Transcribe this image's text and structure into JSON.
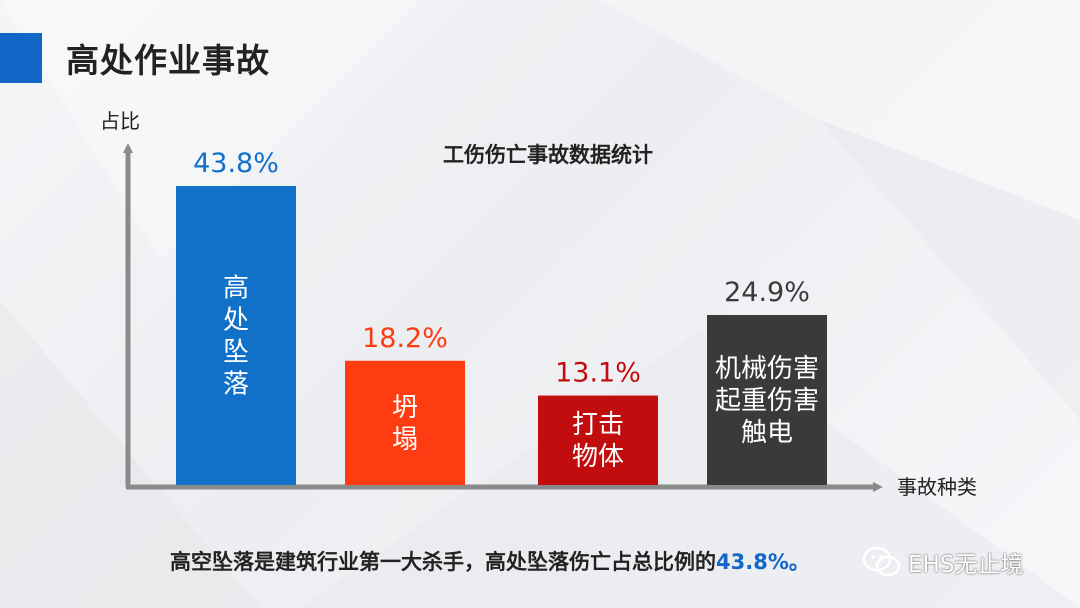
{
  "header": {
    "title": "高处作业事故"
  },
  "chart_data": {
    "type": "bar",
    "title": "工伤伤亡事故数据统计",
    "ylabel": "占比",
    "xlabel": "事故种类",
    "ylim": [
      0,
      52
    ],
    "categories": [
      "高处坠落",
      "坍塌",
      "打击物体",
      "机械伤害起重伤害触电"
    ],
    "category_lines": [
      [
        "高",
        "处",
        "坠",
        "落"
      ],
      [
        "坍",
        "塌"
      ],
      [
        "打击",
        "物体"
      ],
      [
        "机械伤害",
        "起重伤害",
        "触电"
      ]
    ],
    "values": [
      43.8,
      18.2,
      13.1,
      24.9
    ],
    "value_labels": [
      "43.8%",
      "18.2%",
      "13.1%",
      "24.9%"
    ],
    "bar_colors": [
      "#1170c8",
      "#ff3b12",
      "#c10d0d",
      "#3a3a3a"
    ],
    "value_label_colors": [
      "#1170c8",
      "#ff3b12",
      "#c10d0d",
      "#3a3a3a"
    ]
  },
  "conclusion": {
    "text": "高空坠落是建筑行业第一大杀手，高处坠落伤亡占总比例的",
    "highlight": "43.8%。"
  },
  "watermark": {
    "text": "EHS无止境",
    "icon": "wechat-icon"
  },
  "colors": {
    "accent": "#1166c8",
    "axis": "#8a8a8a"
  }
}
